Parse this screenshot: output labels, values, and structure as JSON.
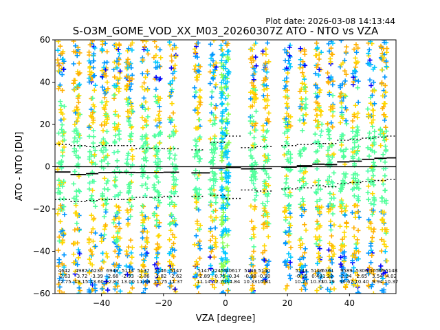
{
  "chart_data": {
    "type": "scatter",
    "title": "S-O3M_GOME_VOD_XX_M03_20260307Z ATO - NTO vs VZA",
    "plot_date": "Plot date: 2026-03-08 14:13:44",
    "xlabel": "VZA [degree]",
    "ylabel": "ATO - NTO [DU]",
    "xlim": [
      -55,
      55
    ],
    "ylim": [
      -60,
      60
    ],
    "xticks": [
      -40,
      -20,
      0,
      20,
      40
    ],
    "yticks": [
      -60,
      -40,
      -20,
      0,
      20,
      40,
      60
    ],
    "grid": false,
    "zero_line": 0,
    "marker": "+",
    "colors": [
      "#ffd700",
      "#ffb000",
      "#00c8ff",
      "#0096ff",
      "#0000ff",
      "#50ff9a",
      "#50ffb0",
      "#8cff50"
    ],
    "columns": [
      {
        "vza": -53,
        "spread": 1.0
      },
      {
        "vza": -48,
        "spread": 1.0
      },
      {
        "vza": -43,
        "spread": 1.0
      },
      {
        "vza": -39,
        "spread": 1.0
      },
      {
        "vza": -35,
        "spread": 1.0
      },
      {
        "vza": -31,
        "spread": 1.0
      },
      {
        "vza": -26,
        "spread": 1.0
      },
      {
        "vza": -22,
        "spread": 1.0
      },
      {
        "vza": -17,
        "spread": 1.0
      },
      {
        "vza": -9,
        "spread": 0.9
      },
      {
        "vza": -4,
        "spread": 0.9
      },
      {
        "vza": -1,
        "spread": 0.4
      },
      {
        "vza": 0.5,
        "spread": 0.6
      },
      {
        "vza": 9,
        "spread": 0.9
      },
      {
        "vza": 13,
        "spread": 0.9
      },
      {
        "vza": 20,
        "spread": 1.0
      },
      {
        "vza": 25,
        "spread": 1.0
      },
      {
        "vza": 30,
        "spread": 1.0
      },
      {
        "vza": 34,
        "spread": 1.0
      },
      {
        "vza": 38,
        "spread": 1.0
      },
      {
        "vza": 42,
        "spread": 1.0
      },
      {
        "vza": 47,
        "spread": 1.0
      },
      {
        "vza": 51,
        "spread": 1.0
      }
    ],
    "mean_segments": [
      {
        "x": [
          -55,
          -50
        ],
        "y": -2.5
      },
      {
        "x": [
          -50,
          -45
        ],
        "y": -3.7
      },
      {
        "x": [
          -45,
          -41
        ],
        "y": -3.3
      },
      {
        "x": [
          -41,
          -37
        ],
        "y": -2.8
      },
      {
        "x": [
          -37,
          -33
        ],
        "y": -2.7
      },
      {
        "x": [
          -33,
          -29
        ],
        "y": -2.7
      },
      {
        "x": [
          -29,
          -24
        ],
        "y": -2.8
      },
      {
        "x": [
          -24,
          -20
        ],
        "y": -2.8
      },
      {
        "x": [
          -20,
          -15
        ],
        "y": -2.6
      },
      {
        "x": [
          -11,
          -5
        ],
        "y": -2.9
      },
      {
        "x": [
          -5,
          0
        ],
        "y": -0.7
      },
      {
        "x": [
          0,
          5
        ],
        "y": -0.3
      },
      {
        "x": [
          5,
          10
        ],
        "y": -1.0
      },
      {
        "x": [
          10,
          15
        ],
        "y": -0.9
      },
      {
        "x": [
          18,
          23
        ],
        "y": -0.2
      },
      {
        "x": [
          23,
          28
        ],
        "y": 0.5
      },
      {
        "x": [
          28,
          32
        ],
        "y": 1.2
      },
      {
        "x": [
          32,
          36
        ],
        "y": 1.0
      },
      {
        "x": [
          36,
          40
        ],
        "y": 2.3
      },
      {
        "x": [
          40,
          44
        ],
        "y": 2.6
      },
      {
        "x": [
          44,
          48
        ],
        "y": 3.5
      },
      {
        "x": [
          48,
          52
        ],
        "y": 4.0
      },
      {
        "x": [
          52,
          55
        ],
        "y": 4.2
      }
    ],
    "upper_sigma_segments": [
      {
        "x": [
          -55,
          -50
        ],
        "y": 10.5
      },
      {
        "x": [
          -50,
          -45
        ],
        "y": 10.0
      },
      {
        "x": [
          -45,
          -41
        ],
        "y": 9.5
      },
      {
        "x": [
          -41,
          -37
        ],
        "y": 10.0
      },
      {
        "x": [
          -37,
          -33
        ],
        "y": 10.0
      },
      {
        "x": [
          -33,
          -29
        ],
        "y": 10.0
      },
      {
        "x": [
          -29,
          -24
        ],
        "y": 8.5
      },
      {
        "x": [
          -24,
          -20
        ],
        "y": 8.7
      },
      {
        "x": [
          -20,
          -15
        ],
        "y": 8.5
      },
      {
        "x": [
          -11,
          -7
        ],
        "y": 8.0
      },
      {
        "x": [
          -5,
          0
        ],
        "y": 11.5
      },
      {
        "x": [
          0,
          5
        ],
        "y": 14.5
      },
      {
        "x": [
          5,
          10
        ],
        "y": 9.0
      },
      {
        "x": [
          10,
          15
        ],
        "y": 9.5
      },
      {
        "x": [
          18,
          23
        ],
        "y": 10.0
      },
      {
        "x": [
          23,
          28
        ],
        "y": 10.5
      },
      {
        "x": [
          28,
          32
        ],
        "y": 11.0
      },
      {
        "x": [
          32,
          36
        ],
        "y": 11.0
      },
      {
        "x": [
          36,
          40
        ],
        "y": 12.5
      },
      {
        "x": [
          40,
          44
        ],
        "y": 13.0
      },
      {
        "x": [
          44,
          48
        ],
        "y": 13.5
      },
      {
        "x": [
          48,
          52
        ],
        "y": 14.0
      },
      {
        "x": [
          52,
          55
        ],
        "y": 14.5
      }
    ],
    "lower_sigma_segments": [
      {
        "x": [
          -55,
          -50
        ],
        "y": -15.5
      },
      {
        "x": [
          -50,
          -45
        ],
        "y": -16.5
      },
      {
        "x": [
          -45,
          -41
        ],
        "y": -16.0
      },
      {
        "x": [
          -41,
          -37
        ],
        "y": -15.5
      },
      {
        "x": [
          -37,
          -33
        ],
        "y": -15.5
      },
      {
        "x": [
          -33,
          -29
        ],
        "y": -15.5
      },
      {
        "x": [
          -29,
          -24
        ],
        "y": -14.5
      },
      {
        "x": [
          -24,
          -20
        ],
        "y": -14.5
      },
      {
        "x": [
          -20,
          -15
        ],
        "y": -14.0
      },
      {
        "x": [
          -11,
          -7
        ],
        "y": -14.0
      },
      {
        "x": [
          -5,
          0
        ],
        "y": -13.5
      },
      {
        "x": [
          0,
          5
        ],
        "y": -15.0
      },
      {
        "x": [
          5,
          10
        ],
        "y": -11.0
      },
      {
        "x": [
          10,
          15
        ],
        "y": -11.5
      },
      {
        "x": [
          18,
          23
        ],
        "y": -10.5
      },
      {
        "x": [
          23,
          28
        ],
        "y": -10.0
      },
      {
        "x": [
          28,
          32
        ],
        "y": -9.0
      },
      {
        "x": [
          32,
          36
        ],
        "y": -9.5
      },
      {
        "x": [
          36,
          40
        ],
        "y": -8.0
      },
      {
        "x": [
          40,
          44
        ],
        "y": -7.5
      },
      {
        "x": [
          44,
          48
        ],
        "y": -7.0
      },
      {
        "x": [
          48,
          52
        ],
        "y": -6.5
      },
      {
        "x": [
          52,
          55
        ],
        "y": -6.0
      }
    ],
    "bin_stats": [
      {
        "x": -52,
        "count": "4642",
        "mean": "-2.63",
        "std": "12.75"
      },
      {
        "x": -46.5,
        "count": "4987",
        "mean": "-3.72",
        "std": "13.15"
      },
      {
        "x": -41.5,
        "count": "6230",
        "mean": "-3.39",
        "std": "13.60"
      },
      {
        "x": -36.5,
        "count": "6943",
        "mean": "-2.68",
        "std": "12.82"
      },
      {
        "x": -31.5,
        "count": "5114",
        "mean": "-2.93",
        "std": "13.00"
      },
      {
        "x": -26.5,
        "count": "5137",
        "mean": "-2.86",
        "std": "11.66"
      },
      {
        "x": -21,
        "count": "5146",
        "mean": "-2.82",
        "std": "11.75"
      },
      {
        "x": -16,
        "count": "5147",
        "mean": "-2.62",
        "std": "11.37"
      },
      {
        "x": -7,
        "count": "5147",
        "mean": "-2.89",
        "std": "11.14"
      },
      {
        "x": -2,
        "count": "22455",
        "mean": "-0.75",
        "std": "12.70"
      },
      {
        "x": 2.5,
        "count": "10617",
        "mean": "-0.34",
        "std": "14.84"
      },
      {
        "x": 8,
        "count": "5146",
        "mean": "-0.98",
        "std": "10.33"
      },
      {
        "x": 12.5,
        "count": "5140",
        "mean": "-0.90",
        "std": "10.81"
      },
      {
        "x": 24.5,
        "count": "5143",
        "mean": "-0.15",
        "std": "10.21"
      },
      {
        "x": 29.5,
        "count": "5146",
        "mean": "0.49",
        "std": "10.33"
      },
      {
        "x": 33,
        "count": "6361",
        "mean": "1.22",
        "std": "10.19"
      },
      {
        "x": 39,
        "count": "9589",
        "mean": "2.34",
        "std": "10.67"
      },
      {
        "x": 44,
        "count": "5306",
        "mean": "2.65",
        "std": "10.40"
      },
      {
        "x": 49,
        "count": "10569",
        "mean": "3.54",
        "std": "9.94"
      },
      {
        "x": 53.5,
        "count": "5148",
        "mean": "4.02",
        "std": "10.37"
      }
    ]
  }
}
